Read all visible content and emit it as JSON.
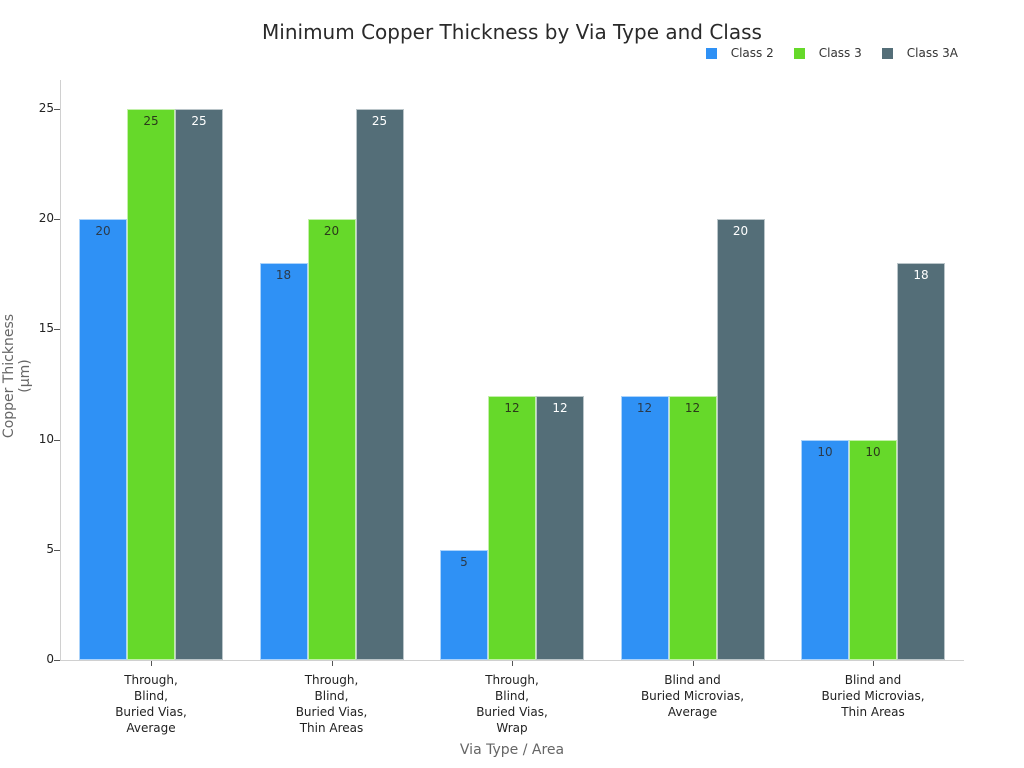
{
  "chart_data": {
    "type": "bar",
    "title": "Minimum Copper Thickness by Via Type and Class",
    "xlabel": "Via Type / Area",
    "ylabel": "Copper Thickness (μm)",
    "ylim": [
      0,
      25
    ],
    "yticks": [
      0,
      5,
      10,
      15,
      20,
      25
    ],
    "grid": false,
    "legend_position": "top-right",
    "categories": [
      "Through,\nBlind,\nBuried Vias,\nAverage",
      "Through,\nBlind,\nBuried Vias,\nThin Areas",
      "Through,\nBlind,\nBuried Vias,\nWrap",
      "Blind and\nBuried Microvias,\nAverage",
      "Blind and\nBuried Microvias,\nThin Areas"
    ],
    "series": [
      {
        "name": "Class 2",
        "color": "#2f91f5",
        "label_color": "#2b3a4a",
        "values": [
          20,
          18,
          5,
          12,
          10
        ]
      },
      {
        "name": "Class 3",
        "color": "#66d92a",
        "label_color": "#2b3a1a",
        "values": [
          25,
          20,
          12,
          12,
          10
        ]
      },
      {
        "name": "Class 3A",
        "color": "#546e78",
        "label_color": "#ffffff",
        "values": [
          25,
          25,
          12,
          20,
          18
        ]
      }
    ]
  }
}
